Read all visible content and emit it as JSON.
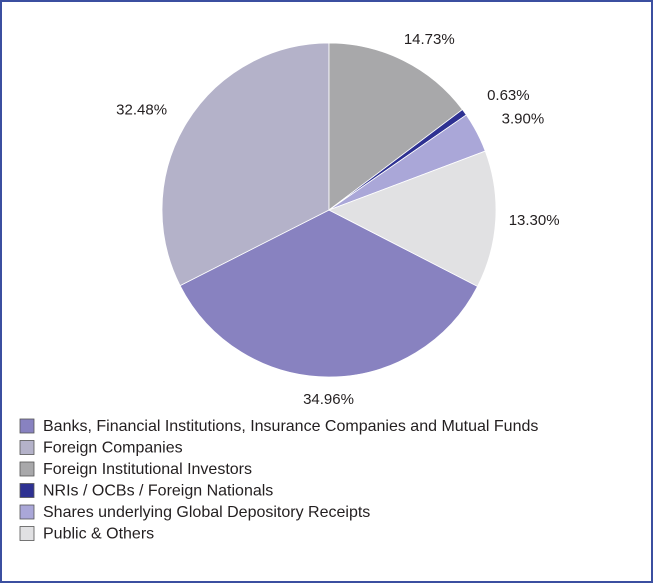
{
  "chart_data": {
    "type": "pie",
    "categories": [
      "Banks, Financial Institutions, Insurance Companies and Mutual Funds",
      "Foreign Companies",
      "Foreign Institutional Investors",
      "NRIs / OCBs / Foreign Nationals",
      "Shares underlying Global Depository Receipts",
      "Public & Others"
    ],
    "values": [
      34.96,
      32.48,
      14.73,
      0.63,
      3.9,
      13.3
    ],
    "value_labels": [
      "34.96%",
      "32.48%",
      "14.73%",
      "0.63%",
      "3.90%",
      "13.30%"
    ],
    "colors": [
      "#8882c0",
      "#b4b2c9",
      "#a8a8aa",
      "#2e3192",
      "#aaa7d8",
      "#e1e1e3"
    ]
  }
}
